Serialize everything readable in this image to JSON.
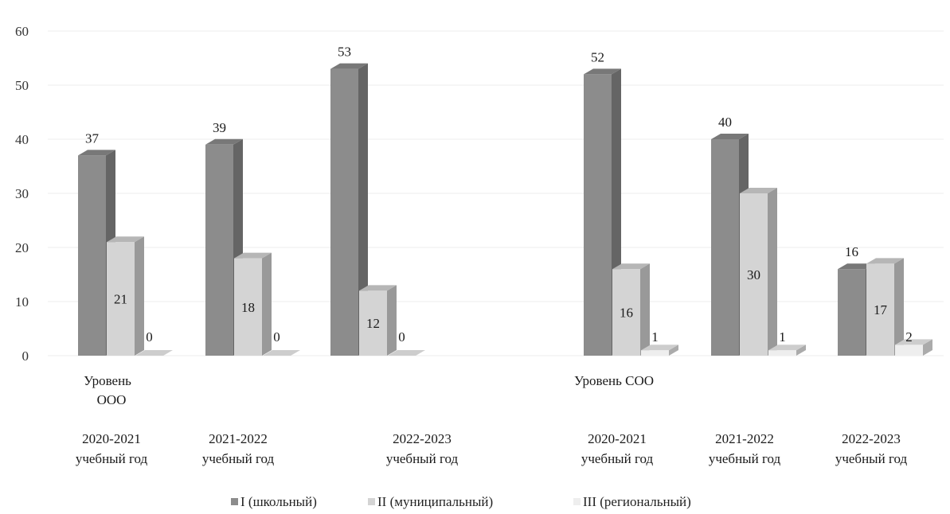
{
  "chart_data": {
    "type": "bar",
    "style": "3d-clustered-column",
    "ylim": [
      0,
      60
    ],
    "yticks": [
      0,
      10,
      20,
      30,
      40,
      50,
      60
    ],
    "grid": true,
    "legend_position": "bottom",
    "groups": [
      {
        "label": "Уровень ООО",
        "categories": [
          "2020-2021 учебный год",
          "2021-2022 учебный год",
          "2022-2023 учебный год"
        ]
      },
      {
        "label": "Уровень СОО",
        "categories": [
          "2020-2021 учебный год",
          "2021-2022 учебный год",
          "2022-2023 учебный год"
        ]
      }
    ],
    "series": [
      {
        "name": "I (школьный)",
        "color": "#8c8c8c",
        "values": [
          37,
          39,
          53,
          52,
          40,
          16
        ]
      },
      {
        "name": "II (муниципальный)",
        "color": "#d4d4d4",
        "values": [
          21,
          18,
          12,
          16,
          30,
          17
        ]
      },
      {
        "name": "III (региональный)",
        "color": "#eeeeee",
        "values": [
          0,
          0,
          0,
          1,
          1,
          2
        ]
      }
    ]
  }
}
